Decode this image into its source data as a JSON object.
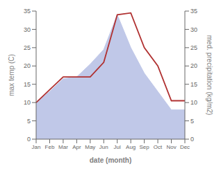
{
  "chart_data": {
    "type": "line",
    "categories": [
      "Jan",
      "Feb",
      "Mar",
      "Apr",
      "May",
      "Jun",
      "Jul",
      "Aug",
      "Sep",
      "Oct",
      "Nov",
      "Dec"
    ],
    "series": [
      {
        "type": "area",
        "axis": "y2",
        "color": "#c0c8e8",
        "values": [
          10,
          13,
          16.5,
          17,
          20.5,
          24.5,
          34,
          25,
          18,
          13,
          8,
          8
        ]
      },
      {
        "type": "line",
        "color": "#b03030",
        "values": [
          10,
          13.5,
          17,
          17,
          17,
          21,
          34,
          34.5,
          25,
          20,
          10.5,
          10.5
        ]
      }
    ],
    "xlabel": "date (month)",
    "ylabel": "max temp (C)",
    "y2label": "med. precipitation (kg/m2)",
    "ylim": [
      0,
      35
    ],
    "yticks": [
      0,
      5,
      10,
      15,
      20,
      25,
      30,
      35
    ],
    "y2lim": [
      0,
      35
    ],
    "y2ticks": [
      0,
      5,
      10,
      15,
      20,
      25,
      30,
      35
    ]
  }
}
